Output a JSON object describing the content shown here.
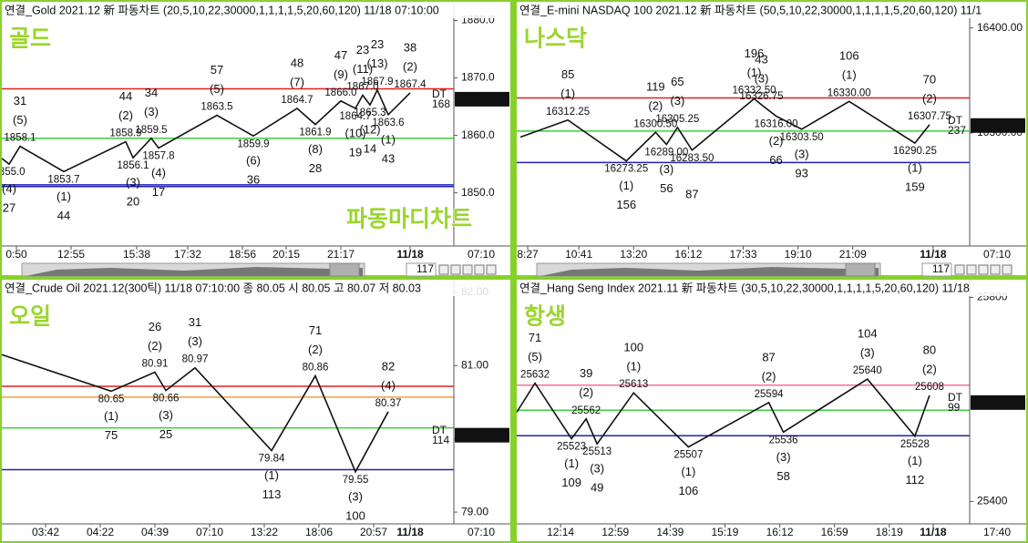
{
  "chart_data": [
    {
      "type": "line",
      "title": "연결_Gold 2021.12 新 파동차트  (20,5,10,22,30000,1,1,1,1,5,20,60,120) 11/18 07:10:00",
      "name": "골드",
      "watermark": "파동마디차트",
      "xlim": [
        0,
        124
      ],
      "ylim": [
        1841.7,
        1882.3
      ],
      "yticks": [
        {
          "value": 1880,
          "label": "1880.0"
        },
        {
          "value": 1870,
          "label": "1870.0"
        },
        {
          "value": 1860,
          "label": "1860.0"
        },
        {
          "value": 1850,
          "label": "1850.0"
        }
      ],
      "xticks": [
        {
          "value": 4,
          "label": "0:50"
        },
        {
          "value": 19,
          "label": "12:55"
        },
        {
          "value": 37,
          "label": "15:38"
        },
        {
          "value": 51,
          "label": "17:32"
        },
        {
          "value": 66,
          "label": "18:56"
        },
        {
          "value": 78,
          "label": "20:15"
        },
        {
          "value": 93,
          "label": "21:17"
        },
        {
          "value": 112,
          "label": "11/18"
        }
      ],
      "last_time": "07:10",
      "hlines": [
        {
          "value": 1868.1,
          "color": "#e02020"
        },
        {
          "value": 1859.5,
          "color": "#3ccf3c"
        },
        {
          "value": 1851.4,
          "color": "#2020b0"
        },
        {
          "value": 1851.1,
          "color": "#2020b0"
        }
      ],
      "last": {
        "value": 1866.3,
        "label": "1866.3"
      },
      "end_labels": [
        "DT",
        "168"
      ],
      "scroll": "117",
      "line_color": "#111111",
      "high_color": "#e03030",
      "low_color": "#3344cc",
      "pivots": [
        {
          "x": 0,
          "value": 1856
        },
        {
          "x": 2,
          "value": 1855.0,
          "label": "1855.0",
          "kind": "low",
          "wave": "(4)",
          "count": "27"
        },
        {
          "x": 5,
          "value": 1858.1,
          "label": "1858.1",
          "kind": "high",
          "wave": "(5)",
          "count": "31"
        },
        {
          "x": 17,
          "value": 1853.7,
          "label": "1853.7",
          "kind": "low",
          "wave": "(1)",
          "count": "44"
        },
        {
          "x": 34,
          "value": 1858.9,
          "label": "1858.9",
          "kind": "high",
          "wave": "(2)",
          "count": "44"
        },
        {
          "x": 36,
          "value": 1856.1,
          "label": "1856.1",
          "kind": "low",
          "wave": "(3)",
          "count": "20"
        },
        {
          "x": 41,
          "value": 1859.5,
          "label": "1859.5",
          "kind": "high",
          "wave": "(3)",
          "count": "34"
        },
        {
          "x": 43,
          "value": 1857.8,
          "label": "1857.8",
          "kind": "low",
          "wave": "(4)",
          "count": "17"
        },
        {
          "x": 59,
          "value": 1863.5,
          "label": "1863.5",
          "kind": "high",
          "wave": "(5)",
          "count": "57"
        },
        {
          "x": 69,
          "value": 1859.9,
          "label": "1859.9",
          "kind": "low",
          "wave": "(6)",
          "count": "36"
        },
        {
          "x": 81,
          "value": 1864.7,
          "label": "1864.7",
          "kind": "high",
          "wave": "(7)",
          "count": "48"
        },
        {
          "x": 86,
          "value": 1861.9,
          "label": "1861.9",
          "kind": "low",
          "wave": "(8)",
          "count": "28"
        },
        {
          "x": 93,
          "value": 1866.0,
          "label": "1866.0",
          "kind": "high",
          "wave": "(9)",
          "count": "47"
        },
        {
          "x": 97,
          "value": 1864.7,
          "label": "1864.7",
          "kind": "low",
          "wave": "(10)",
          "count": "19"
        },
        {
          "x": 99,
          "value": 1867.0,
          "label": "1867.0",
          "kind": "high",
          "wave": "(11)",
          "count": "23"
        },
        {
          "x": 101,
          "value": 1865.3,
          "label": "1865.3",
          "kind": "low",
          "wave": "(12)",
          "count": "14"
        },
        {
          "x": 103,
          "value": 1867.9,
          "label": "1867.9",
          "kind": "high",
          "wave": "(13)",
          "count": "23"
        },
        {
          "x": 106,
          "value": 1863.6,
          "label": "1863.6",
          "kind": "low",
          "wave": "(1)",
          "count": "43"
        },
        {
          "x": 112,
          "value": 1867.4,
          "label": "1867.4",
          "kind": "high",
          "wave": "(2)",
          "count": "38"
        }
      ]
    },
    {
      "type": "line",
      "title": "연결_E-mini NASDAQ 100 2021.12 新 파동차트  (50,5,10,22,30000,1,1,1,1,5,20,60,120) 11/1",
      "name": "나스닥",
      "xlim": [
        0,
        124
      ],
      "ylim": [
        16197.4,
        16419.7
      ],
      "yticks": [
        {
          "value": 16400,
          "label": "16400.00"
        },
        {
          "value": 16300,
          "label": "16300.00"
        }
      ],
      "xticks": [
        {
          "value": 3,
          "label": "8:27"
        },
        {
          "value": 17,
          "label": "10:41"
        },
        {
          "value": 32,
          "label": "13:20"
        },
        {
          "value": 47,
          "label": "16:12"
        },
        {
          "value": 62,
          "label": "17:33"
        },
        {
          "value": 77,
          "label": "19:10"
        },
        {
          "value": 92,
          "label": "21:09"
        },
        {
          "value": 114,
          "label": "11/18"
        }
      ],
      "last_time": "07:10",
      "hlines": [
        {
          "value": 16333.3,
          "color": "#e02020"
        },
        {
          "value": 16301.7,
          "color": "#3ccf3c"
        },
        {
          "value": 16271.8,
          "color": "#2020b0"
        }
      ],
      "last": {
        "value": 16307,
        "label": "16307.00"
      },
      "end_labels": [
        "DT",
        "237"
      ],
      "scroll": "117",
      "line_color": "#111111",
      "high_color": "#e03030",
      "low_color": "#3344cc",
      "pivots": [
        {
          "x": 1,
          "value": 16296
        },
        {
          "x": 14,
          "value": 16312.25,
          "label": "16312.25",
          "kind": "high",
          "wave": "(1)",
          "count": "85"
        },
        {
          "x": 30,
          "value": 16273.25,
          "label": "16273.25",
          "kind": "low",
          "wave": "(1)",
          "count": "156"
        },
        {
          "x": 38,
          "value": 16300.5,
          "label": "16300.50",
          "kind": "high",
          "wave": "(2)",
          "count": "119"
        },
        {
          "x": 41,
          "value": 16289,
          "label": "16289.00",
          "kind": "low",
          "wave": "(3)",
          "count": "56"
        },
        {
          "x": 44,
          "value": 16305.25,
          "label": "16305.25",
          "kind": "high",
          "wave": "(3)",
          "count": "65"
        },
        {
          "x": 48,
          "value": 16283.5,
          "label": "16283.50",
          "kind": "low",
          "count": "87"
        },
        {
          "x": 65,
          "value": 16332.5,
          "label": "16332.50",
          "kind": "high",
          "wave": "(1)",
          "count": "196"
        },
        {
          "x": 67,
          "value": 16326.75,
          "label": "16326.75",
          "kind": "high",
          "wave": "(3)",
          "count": "43"
        },
        {
          "x": 71,
          "value": 16316,
          "label": "16316.00",
          "kind": "low",
          "wave": "(2)",
          "count": "66"
        },
        {
          "x": 78,
          "value": 16303.5,
          "label": "16303.50",
          "kind": "low",
          "wave": "(3)",
          "count": "93"
        },
        {
          "x": 91,
          "value": 16330,
          "label": "16330.00",
          "kind": "high",
          "wave": "(1)",
          "count": "106"
        },
        {
          "x": 109,
          "value": 16290.25,
          "label": "16290.25",
          "kind": "low",
          "wave": "(1)",
          "count": "159"
        },
        {
          "x": 113,
          "value": 16307.75,
          "label": "16307.75",
          "kind": "high",
          "wave": "(2)",
          "count": "70"
        }
      ]
    },
    {
      "type": "line",
      "title": "연결_Crude Oil 2021.12(300틱) 11/18 07:10:00   종 80.05   시 80.05  고 80.07  저 80.03",
      "name": "오일",
      "xlim": [
        0,
        124
      ],
      "ylim": [
        78.914,
        82.098
      ],
      "yticks": [
        {
          "value": 82,
          "label": "82.00"
        },
        {
          "value": 81,
          "label": "81.00"
        },
        {
          "value": 80,
          "label": "80.00"
        },
        {
          "value": 79,
          "label": "79.00"
        }
      ],
      "xticks": [
        {
          "value": 12,
          "label": "03:42"
        },
        {
          "value": 27,
          "label": "04:22"
        },
        {
          "value": 42,
          "label": "04:39"
        },
        {
          "value": 57,
          "label": "07:10"
        },
        {
          "value": 72,
          "label": "13:22"
        },
        {
          "value": 87,
          "label": "18:06"
        },
        {
          "value": 102,
          "label": "20:57"
        },
        {
          "value": 112,
          "label": "11/18"
        }
      ],
      "last_time": "07:10",
      "hlines": [
        {
          "value": 80.718,
          "color": "#e02020"
        },
        {
          "value": 80.57,
          "color": "#f0a040"
        },
        {
          "value": 80.15,
          "color": "#3ccf3c"
        },
        {
          "value": 79.58,
          "color": "#2020b0"
        }
      ],
      "last": {
        "value": 80.05,
        "label": "80.05"
      },
      "end_labels": [
        "DT",
        "114"
      ],
      "line_color": "#111111",
      "high_color": "#e03030",
      "low_color": "#3344cc",
      "pivots": [
        {
          "x": 0,
          "value": 81.15
        },
        {
          "x": 30,
          "value": 80.65,
          "label": "80.65",
          "kind": "low",
          "wave": "(1)",
          "count": "75"
        },
        {
          "x": 42,
          "value": 80.91,
          "label": "80.91",
          "kind": "high",
          "wave": "(2)",
          "count": "26"
        },
        {
          "x": 45,
          "value": 80.66,
          "label": "80.66",
          "kind": "low",
          "wave": "(3)",
          "count": "25"
        },
        {
          "x": 53,
          "value": 80.97,
          "label": "80.97",
          "kind": "high",
          "wave": "(3)",
          "count": "31"
        },
        {
          "x": 74,
          "value": 79.84,
          "label": "79.84",
          "kind": "low",
          "wave": "(1)",
          "count": "113"
        },
        {
          "x": 86,
          "value": 80.86,
          "label": "80.86",
          "kind": "high",
          "wave": "(2)",
          "count": "71"
        },
        {
          "x": 97,
          "value": 79.55,
          "label": "79.55",
          "kind": "low",
          "wave": "(3)",
          "count": "100"
        },
        {
          "x": 106,
          "value": 80.37,
          "label": "80.37",
          "kind": "high",
          "wave": "(4)",
          "count": "82"
        }
      ]
    },
    {
      "type": "line",
      "title": "연결_Hang Seng Index 2021.11 新 파동차트  (30,5,10,22,30000,1,1,1,1,5,20,60,120) 11/18",
      "name": "항생",
      "xlim": [
        0,
        124
      ],
      "ylim": [
        25367,
        25824
      ],
      "yticks": [
        25800,
        25400
      ],
      "xticks": [
        {
          "value": 12,
          "label": "12:14"
        },
        {
          "value": 27,
          "label": "12:59"
        },
        {
          "value": 42,
          "label": "14:39"
        },
        {
          "value": 57,
          "label": "15:19"
        },
        {
          "value": 72,
          "label": "16:12"
        },
        {
          "value": 87,
          "label": "16:59"
        },
        {
          "value": 102,
          "label": "18:19"
        },
        {
          "value": 114,
          "label": "11/18"
        }
      ],
      "last_time": "17:40",
      "hlines": [
        {
          "value": 25628,
          "color": "#f070a0"
        },
        {
          "value": 25579,
          "color": "#3ccf3c"
        },
        {
          "value": 25529,
          "color": "#2020b0"
        }
      ],
      "last": {
        "value": 25594,
        "label": "25594"
      },
      "end_labels": [
        "DT",
        "99"
      ],
      "line_color": "#111111",
      "high_color": "#e03030",
      "low_color": "#3344cc",
      "pivots": [
        {
          "x": 0,
          "value": 25575
        },
        {
          "x": 5,
          "value": 25632,
          "label": "25632",
          "kind": "high",
          "wave": "(5)",
          "count": "71"
        },
        {
          "x": 15,
          "value": 25523,
          "label": "25523",
          "kind": "low",
          "wave": "(1)",
          "count": "109"
        },
        {
          "x": 19,
          "value": 25562,
          "label": "25562",
          "kind": "high",
          "wave": "(2)",
          "count": "39"
        },
        {
          "x": 22,
          "value": 25513,
          "label": "25513",
          "kind": "low",
          "wave": "(3)",
          "count": "49"
        },
        {
          "x": 32,
          "value": 25613,
          "label": "25613",
          "kind": "high",
          "wave": "(1)",
          "count": "100"
        },
        {
          "x": 47,
          "value": 25507,
          "label": "25507",
          "kind": "low",
          "wave": "(1)",
          "count": "106"
        },
        {
          "x": 69,
          "value": 25594,
          "label": "25594",
          "kind": "high",
          "wave": "(2)",
          "count": "87"
        },
        {
          "x": 73,
          "value": 25536,
          "label": "25536",
          "kind": "low",
          "wave": "(3)",
          "count": "58"
        },
        {
          "x": 96,
          "value": 25640,
          "label": "25640",
          "kind": "high",
          "wave": "(3)",
          "count": "104"
        },
        {
          "x": 109,
          "value": 25528,
          "label": "25528",
          "kind": "low",
          "wave": "(1)",
          "count": "112"
        },
        {
          "x": 113,
          "value": 25608,
          "label": "25608",
          "kind": "high",
          "wave": "(2)",
          "count": "80"
        }
      ]
    }
  ]
}
